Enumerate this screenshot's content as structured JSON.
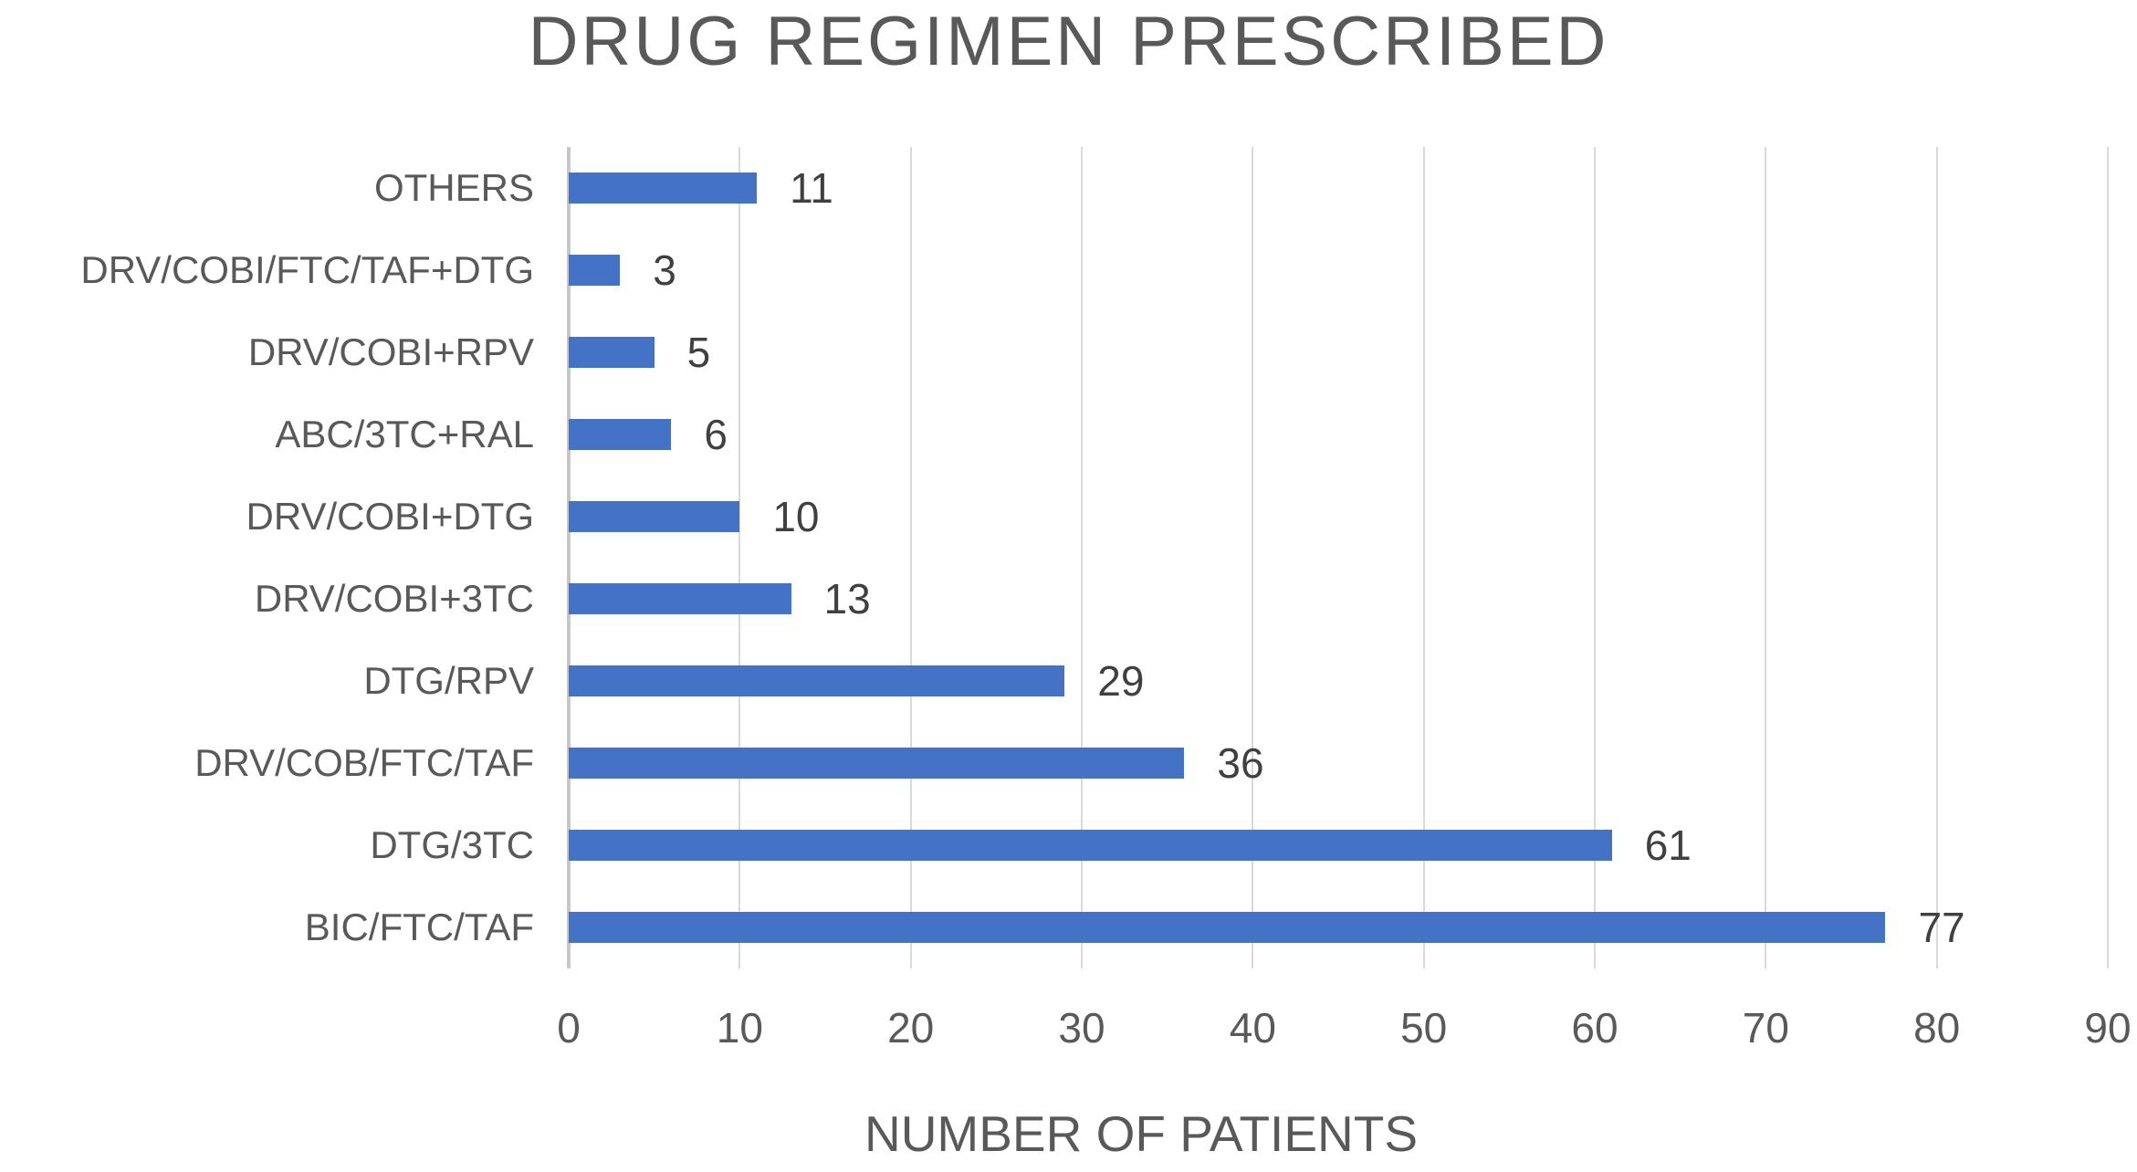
{
  "chart_data": {
    "type": "bar",
    "orientation": "horizontal",
    "title": "DRUG REGIMEN PRESCRIBED",
    "xlabel": "NUMBER OF PATIENTS",
    "categories": [
      "OTHERS",
      "DRV/COBI/FTC/TAF+DTG",
      "DRV/COBI+RPV",
      "ABC/3TC+RAL",
      "DRV/COBI+DTG",
      "DRV/COBI+3TC",
      "DTG/RPV",
      "DRV/COB/FTC/TAF",
      "DTG/3TC",
      "BIC/FTC/TAF"
    ],
    "values": [
      11,
      3,
      5,
      6,
      10,
      13,
      29,
      36,
      61,
      77
    ],
    "xlim": [
      0,
      90
    ],
    "xticks": [
      0,
      10,
      20,
      30,
      40,
      50,
      60,
      70,
      80,
      90
    ],
    "grid": "vertical-gridlines-on",
    "legend": "none",
    "data_labels": "shown-at-bar-end",
    "colors": {
      "bar": "#4472C4",
      "gridline": "#D9D9D9",
      "zero_axis_line": "#C6C6C6",
      "title_text": "#595959",
      "axis_text": "#595959",
      "value_label_text": "#404040",
      "background": "#FFFFFF"
    }
  }
}
